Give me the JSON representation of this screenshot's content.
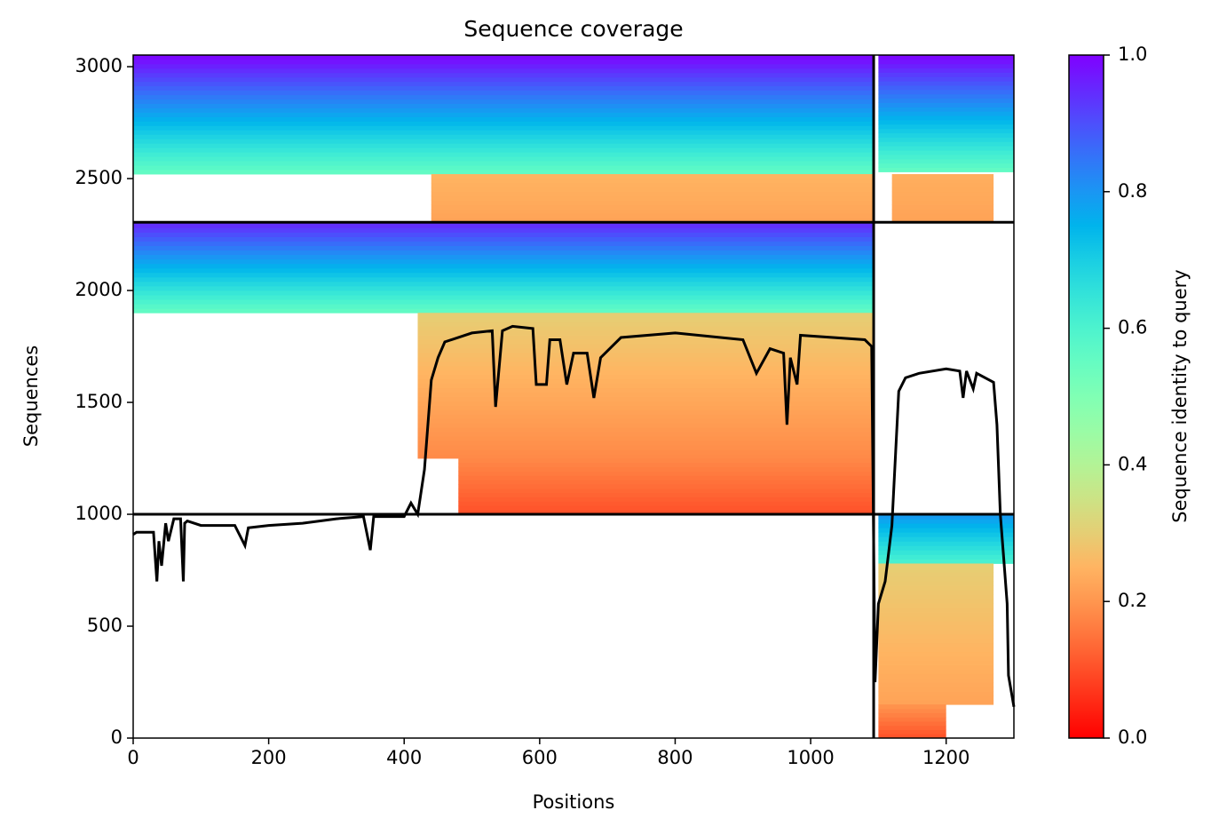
{
  "chart_data": {
    "type": "coverage",
    "title": "Sequence coverage",
    "x_label": "Positions",
    "y_label": "Sequences",
    "colorbar_label": "Sequence identity to query",
    "colormap": "rainbow_r",
    "xlim": [
      0,
      1300
    ],
    "ylim": [
      0,
      3052
    ],
    "xticks": [
      0,
      200,
      400,
      600,
      800,
      1000,
      1200
    ],
    "yticks": [
      0,
      500,
      1000,
      1500,
      2000,
      2500,
      3000
    ],
    "clim": [
      0,
      1
    ],
    "cticks": [
      {
        "value": 0,
        "label": "0.0"
      },
      0.2,
      0.4,
      0.6,
      0.8,
      {
        "value": 1,
        "label": "1.0"
      }
    ],
    "x_boundary": 1093,
    "y_boundaries": [
      1000,
      2305
    ],
    "blocks": [
      {
        "x": [
          0,
          1093
        ],
        "rows": [
          2520,
          3052
        ],
        "identity": [
          0.55,
          1.0
        ]
      },
      {
        "x": [
          440,
          1093
        ],
        "rows": [
          2305,
          2520
        ],
        "identity": [
          0.22,
          0.25
        ]
      },
      {
        "x": [
          0,
          1093
        ],
        "rows": [
          1900,
          2300
        ],
        "identity": [
          0.55,
          0.95
        ]
      },
      {
        "x": [
          420,
          1093
        ],
        "rows": [
          1250,
          1900
        ],
        "identity": [
          0.18,
          0.3
        ]
      },
      {
        "x": [
          480,
          1093
        ],
        "rows": [
          1000,
          1250
        ],
        "identity": [
          0.1,
          0.18
        ]
      },
      {
        "x": [
          1100,
          1300
        ],
        "rows": [
          2530,
          3052
        ],
        "identity": [
          0.55,
          1.0
        ]
      },
      {
        "x": [
          1120,
          1270
        ],
        "rows": [
          2305,
          2520
        ],
        "identity": [
          0.22,
          0.24
        ]
      },
      {
        "x": [
          1100,
          1300
        ],
        "rows": [
          780,
          1000
        ],
        "identity": [
          0.6,
          0.8
        ]
      },
      {
        "x": [
          1100,
          1270
        ],
        "rows": [
          150,
          780
        ],
        "identity": [
          0.22,
          0.3
        ]
      },
      {
        "x": [
          1100,
          1200
        ],
        "rows": [
          0,
          150
        ],
        "identity": [
          0.1,
          0.2
        ]
      }
    ],
    "coverage": {
      "color": "#000000",
      "x": [
        0,
        5,
        30,
        35,
        38,
        42,
        48,
        52,
        60,
        70,
        74,
        76,
        80,
        100,
        150,
        165,
        170,
        200,
        250,
        300,
        340,
        350,
        355,
        400,
        410,
        420,
        430,
        440,
        450,
        460,
        500,
        530,
        535,
        545,
        560,
        590,
        595,
        610,
        615,
        630,
        640,
        650,
        670,
        680,
        690,
        720,
        800,
        900,
        920,
        940,
        960,
        965,
        970,
        980,
        985,
        1080,
        1090,
        1095,
        1100,
        1110,
        1120,
        1130,
        1140,
        1160,
        1200,
        1220,
        1225,
        1230,
        1240,
        1245,
        1270,
        1275,
        1280,
        1285,
        1290,
        1292,
        1300
      ],
      "values": [
        910,
        920,
        920,
        700,
        880,
        770,
        960,
        880,
        980,
        980,
        700,
        960,
        970,
        950,
        950,
        860,
        940,
        950,
        960,
        980,
        990,
        840,
        990,
        990,
        1050,
        1000,
        1200,
        1600,
        1700,
        1770,
        1810,
        1820,
        1480,
        1820,
        1840,
        1830,
        1580,
        1580,
        1780,
        1780,
        1580,
        1720,
        1720,
        1520,
        1700,
        1790,
        1810,
        1780,
        1630,
        1740,
        1720,
        1400,
        1700,
        1580,
        1800,
        1780,
        1750,
        250,
        600,
        700,
        950,
        1550,
        1610,
        1630,
        1650,
        1640,
        1520,
        1640,
        1560,
        1630,
        1590,
        1400,
        1000,
        800,
        600,
        280,
        140
      ]
    }
  }
}
